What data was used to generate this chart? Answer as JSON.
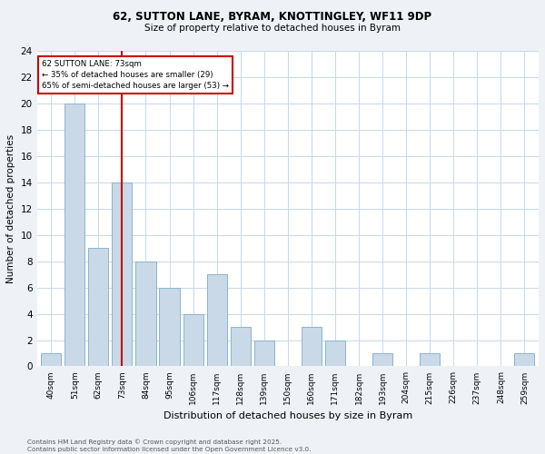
{
  "title1": "62, SUTTON LANE, BYRAM, KNOTTINGLEY, WF11 9DP",
  "title2": "Size of property relative to detached houses in Byram",
  "xlabel": "Distribution of detached houses by size in Byram",
  "ylabel": "Number of detached properties",
  "categories": [
    "40sqm",
    "51sqm",
    "62sqm",
    "73sqm",
    "84sqm",
    "95sqm",
    "106sqm",
    "117sqm",
    "128sqm",
    "139sqm",
    "150sqm",
    "160sqm",
    "171sqm",
    "182sqm",
    "193sqm",
    "204sqm",
    "215sqm",
    "226sqm",
    "237sqm",
    "248sqm",
    "259sqm"
  ],
  "values": [
    1,
    20,
    9,
    14,
    8,
    6,
    4,
    7,
    3,
    2,
    0,
    3,
    2,
    0,
    1,
    0,
    1,
    0,
    0,
    0,
    1
  ],
  "bar_color": "#c9d9e8",
  "bar_edge_color": "#8ab4cf",
  "vline_x": 3,
  "vline_color": "#cc0000",
  "annotation_line1": "62 SUTTON LANE: 73sqm",
  "annotation_line2": "← 35% of detached houses are smaller (29)",
  "annotation_line3": "65% of semi-detached houses are larger (53) →",
  "annotation_box_color": "#cc0000",
  "ylim": [
    0,
    24
  ],
  "yticks": [
    0,
    2,
    4,
    6,
    8,
    10,
    12,
    14,
    16,
    18,
    20,
    22,
    24
  ],
  "footer1": "Contains HM Land Registry data © Crown copyright and database right 2025.",
  "footer2": "Contains public sector information licensed under the Open Government Licence v3.0.",
  "bg_color": "#eef2f7",
  "plot_bg_color": "#ffffff",
  "grid_color": "#c8d8e8"
}
